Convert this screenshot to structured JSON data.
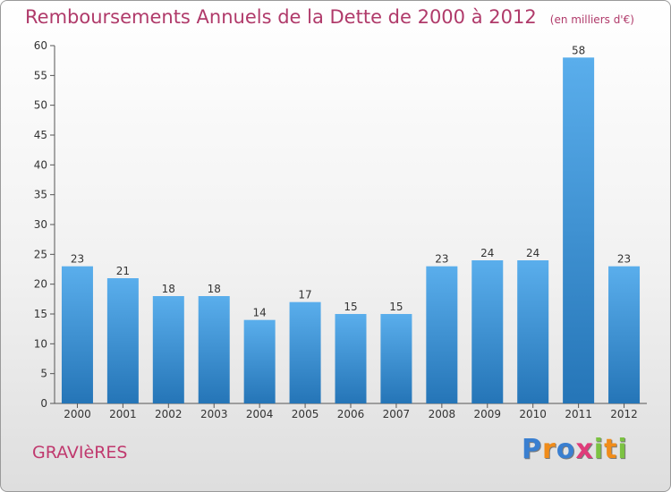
{
  "title": "Remboursements Annuels de la Dette de 2000 à 2012",
  "unit_note": "(en milliers d'€)",
  "commune": "GRAVIèRES",
  "logo": {
    "text": "Proxiti",
    "letters": [
      {
        "ch": "P",
        "color": "#3a7fd0"
      },
      {
        "ch": "r",
        "color": "#f08c1a"
      },
      {
        "ch": "o",
        "color": "#3a7fd0"
      },
      {
        "ch": "x",
        "color": "#e03c7a"
      },
      {
        "ch": "i",
        "color": "#7cc242"
      },
      {
        "ch": "t",
        "color": "#f08c1a"
      },
      {
        "ch": "i",
        "color": "#7cc242"
      }
    ]
  },
  "colors": {
    "title": "#b03a6a",
    "bar_top": "#5aaeec",
    "bar_bottom": "#2575b7"
  },
  "chart_data": {
    "type": "bar",
    "categories": [
      "2000",
      "2001",
      "2002",
      "2003",
      "2004",
      "2005",
      "2006",
      "2007",
      "2008",
      "2009",
      "2010",
      "2011",
      "2012"
    ],
    "values": [
      23,
      21,
      18,
      18,
      14,
      17,
      15,
      15,
      23,
      24,
      24,
      58,
      23
    ],
    "ylim": [
      0,
      60
    ],
    "yticks": [
      0,
      5,
      10,
      15,
      20,
      25,
      30,
      35,
      40,
      45,
      50,
      55,
      60
    ],
    "grid": false,
    "data_labels": true
  }
}
